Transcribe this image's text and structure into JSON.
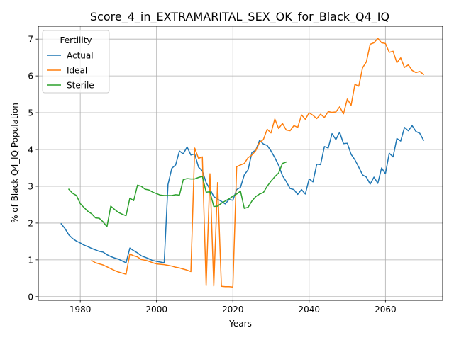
{
  "chart_data": {
    "type": "line",
    "title": "Score_4_in_EXTRAMARITAL_SEX_OK_for_Black_Q4_IQ",
    "xlabel": "Years",
    "ylabel": "% of Black Q4_IQ Population",
    "xlim": [
      1969,
      2075
    ],
    "ylim": [
      -0.1,
      7.35
    ],
    "xticks": [
      1980,
      2000,
      2020,
      2040,
      2060
    ],
    "yticks": [
      0,
      1,
      2,
      3,
      4,
      5,
      6,
      7
    ],
    "grid": true,
    "legend": {
      "title": "Fertility",
      "placement": "upper-left"
    },
    "series": [
      {
        "name": "Actual",
        "color": "#1f77b4",
        "points": [
          [
            1975,
            1.98
          ],
          [
            1976,
            1.85
          ],
          [
            1977,
            1.68
          ],
          [
            1978,
            1.58
          ],
          [
            1979,
            1.51
          ],
          [
            1980,
            1.46
          ],
          [
            1981,
            1.4
          ],
          [
            1982,
            1.36
          ],
          [
            1983,
            1.31
          ],
          [
            1984,
            1.27
          ],
          [
            1985,
            1.23
          ],
          [
            1986,
            1.21
          ],
          [
            1987,
            1.14
          ],
          [
            1988,
            1.09
          ],
          [
            1989,
            1.05
          ],
          [
            1990,
            1.02
          ],
          [
            1991,
            0.97
          ],
          [
            1992,
            0.92
          ],
          [
            1993,
            1.32
          ],
          [
            1994,
            1.25
          ],
          [
            1995,
            1.19
          ],
          [
            1996,
            1.11
          ],
          [
            1997,
            1.07
          ],
          [
            1998,
            1.03
          ],
          [
            1999,
            0.98
          ],
          [
            2000,
            0.96
          ],
          [
            2001,
            0.94
          ],
          [
            2002,
            0.92
          ],
          [
            2003,
            3.05
          ],
          [
            2004,
            3.49
          ],
          [
            2005,
            3.58
          ],
          [
            2006,
            3.96
          ],
          [
            2007,
            3.88
          ],
          [
            2008,
            4.07
          ],
          [
            2009,
            3.85
          ],
          [
            2010,
            3.88
          ],
          [
            2011,
            3.52
          ],
          [
            2012,
            3.42
          ],
          [
            2013,
            3.1
          ],
          [
            2014,
            2.92
          ],
          [
            2015,
            2.72
          ],
          [
            2016,
            2.65
          ],
          [
            2017,
            2.59
          ],
          [
            2018,
            2.52
          ],
          [
            2019,
            2.64
          ],
          [
            2020,
            2.62
          ],
          [
            2021,
            2.91
          ],
          [
            2022,
            2.97
          ],
          [
            2023,
            3.31
          ],
          [
            2024,
            3.45
          ],
          [
            2025,
            3.92
          ],
          [
            2026,
            3.98
          ],
          [
            2027,
            4.25
          ],
          [
            2028,
            4.15
          ],
          [
            2029,
            4.11
          ],
          [
            2030,
            3.96
          ],
          [
            2031,
            3.78
          ],
          [
            2032,
            3.57
          ],
          [
            2033,
            3.29
          ],
          [
            2034,
            3.13
          ],
          [
            2035,
            2.94
          ],
          [
            2036,
            2.91
          ],
          [
            2037,
            2.78
          ],
          [
            2038,
            2.91
          ],
          [
            2039,
            2.79
          ],
          [
            2040,
            3.2
          ],
          [
            2041,
            3.12
          ],
          [
            2042,
            3.6
          ],
          [
            2043,
            3.59
          ],
          [
            2044,
            4.08
          ],
          [
            2045,
            4.04
          ],
          [
            2046,
            4.43
          ],
          [
            2047,
            4.27
          ],
          [
            2048,
            4.47
          ],
          [
            2049,
            4.16
          ],
          [
            2050,
            4.17
          ],
          [
            2051,
            3.87
          ],
          [
            2052,
            3.72
          ],
          [
            2053,
            3.52
          ],
          [
            2054,
            3.31
          ],
          [
            2055,
            3.25
          ],
          [
            2056,
            3.06
          ],
          [
            2057,
            3.25
          ],
          [
            2058,
            3.08
          ],
          [
            2059,
            3.5
          ],
          [
            2060,
            3.34
          ],
          [
            2061,
            3.9
          ],
          [
            2062,
            3.8
          ],
          [
            2063,
            4.3
          ],
          [
            2064,
            4.23
          ],
          [
            2065,
            4.6
          ],
          [
            2066,
            4.51
          ],
          [
            2067,
            4.65
          ],
          [
            2068,
            4.49
          ],
          [
            2069,
            4.44
          ],
          [
            2070,
            4.25
          ]
        ]
      },
      {
        "name": "Ideal",
        "color": "#ff7f0e",
        "points": [
          [
            1983,
            0.98
          ],
          [
            1984,
            0.92
          ],
          [
            1985,
            0.89
          ],
          [
            1986,
            0.86
          ],
          [
            1987,
            0.81
          ],
          [
            1988,
            0.76
          ],
          [
            1989,
            0.71
          ],
          [
            1990,
            0.67
          ],
          [
            1991,
            0.64
          ],
          [
            1992,
            0.61
          ],
          [
            1993,
            1.16
          ],
          [
            1994,
            1.11
          ],
          [
            1995,
            1.08
          ],
          [
            1996,
            1.01
          ],
          [
            1997,
            0.99
          ],
          [
            1998,
            0.96
          ],
          [
            1999,
            0.92
          ],
          [
            2000,
            0.89
          ],
          [
            2001,
            0.88
          ],
          [
            2002,
            0.87
          ],
          [
            2003,
            0.85
          ],
          [
            2004,
            0.83
          ],
          [
            2005,
            0.8
          ],
          [
            2006,
            0.78
          ],
          [
            2007,
            0.75
          ],
          [
            2008,
            0.72
          ],
          [
            2009,
            0.68
          ],
          [
            2010,
            4.04
          ],
          [
            2011,
            3.76
          ],
          [
            2012,
            3.8
          ],
          [
            2013,
            0.3
          ],
          [
            2014,
            3.34
          ],
          [
            2015,
            0.29
          ],
          [
            2016,
            3.1
          ],
          [
            2017,
            0.28
          ],
          [
            2018,
            0.27
          ],
          [
            2019,
            0.27
          ],
          [
            2020,
            0.26
          ],
          [
            2021,
            3.53
          ],
          [
            2022,
            3.58
          ],
          [
            2023,
            3.62
          ],
          [
            2024,
            3.78
          ],
          [
            2025,
            3.85
          ],
          [
            2026,
            3.97
          ],
          [
            2027,
            4.19
          ],
          [
            2028,
            4.27
          ],
          [
            2029,
            4.55
          ],
          [
            2030,
            4.45
          ],
          [
            2031,
            4.83
          ],
          [
            2032,
            4.57
          ],
          [
            2033,
            4.71
          ],
          [
            2034,
            4.53
          ],
          [
            2035,
            4.51
          ],
          [
            2036,
            4.65
          ],
          [
            2037,
            4.6
          ],
          [
            2038,
            4.94
          ],
          [
            2039,
            4.82
          ],
          [
            2040,
            5.0
          ],
          [
            2041,
            4.93
          ],
          [
            2042,
            4.84
          ],
          [
            2043,
            4.96
          ],
          [
            2044,
            4.87
          ],
          [
            2045,
            5.03
          ],
          [
            2046,
            5.01
          ],
          [
            2047,
            5.02
          ],
          [
            2048,
            5.16
          ],
          [
            2049,
            4.97
          ],
          [
            2050,
            5.37
          ],
          [
            2051,
            5.2
          ],
          [
            2052,
            5.77
          ],
          [
            2053,
            5.72
          ],
          [
            2054,
            6.22
          ],
          [
            2055,
            6.38
          ],
          [
            2056,
            6.86
          ],
          [
            2057,
            6.9
          ],
          [
            2058,
            7.02
          ],
          [
            2059,
            6.9
          ],
          [
            2060,
            6.88
          ],
          [
            2061,
            6.64
          ],
          [
            2062,
            6.67
          ],
          [
            2063,
            6.36
          ],
          [
            2064,
            6.49
          ],
          [
            2065,
            6.23
          ],
          [
            2066,
            6.3
          ],
          [
            2067,
            6.15
          ],
          [
            2068,
            6.09
          ],
          [
            2069,
            6.12
          ],
          [
            2070,
            6.04
          ]
        ]
      },
      {
        "name": "Sterile",
        "color": "#2ca02c",
        "points": [
          [
            1977,
            2.92
          ],
          [
            1978,
            2.81
          ],
          [
            1979,
            2.75
          ],
          [
            1980,
            2.53
          ],
          [
            1981,
            2.42
          ],
          [
            1982,
            2.32
          ],
          [
            1983,
            2.25
          ],
          [
            1984,
            2.14
          ],
          [
            1985,
            2.13
          ],
          [
            1986,
            2.03
          ],
          [
            1987,
            1.9
          ],
          [
            1988,
            2.46
          ],
          [
            1989,
            2.37
          ],
          [
            1990,
            2.29
          ],
          [
            1991,
            2.24
          ],
          [
            1992,
            2.2
          ],
          [
            1993,
            2.68
          ],
          [
            1994,
            2.61
          ],
          [
            1995,
            3.03
          ],
          [
            1996,
            3.0
          ],
          [
            1997,
            2.92
          ],
          [
            1998,
            2.9
          ],
          [
            1999,
            2.84
          ],
          [
            2000,
            2.8
          ],
          [
            2001,
            2.76
          ],
          [
            2002,
            2.75
          ],
          [
            2003,
            2.75
          ],
          [
            2004,
            2.75
          ],
          [
            2005,
            2.77
          ],
          [
            2006,
            2.76
          ],
          [
            2007,
            3.18
          ],
          [
            2008,
            3.21
          ],
          [
            2009,
            3.2
          ],
          [
            2010,
            3.2
          ],
          [
            2011,
            3.24
          ],
          [
            2012,
            3.27
          ],
          [
            2013,
            2.84
          ],
          [
            2014,
            2.85
          ],
          [
            2015,
            2.45
          ],
          [
            2016,
            2.46
          ],
          [
            2017,
            2.54
          ],
          [
            2018,
            2.6
          ],
          [
            2019,
            2.66
          ],
          [
            2020,
            2.73
          ],
          [
            2021,
            2.79
          ],
          [
            2022,
            2.87
          ],
          [
            2023,
            2.4
          ],
          [
            2024,
            2.43
          ],
          [
            2025,
            2.6
          ],
          [
            2026,
            2.72
          ],
          [
            2027,
            2.79
          ],
          [
            2028,
            2.83
          ],
          [
            2029,
            3.0
          ],
          [
            2030,
            3.14
          ],
          [
            2031,
            3.26
          ],
          [
            2032,
            3.36
          ],
          [
            2033,
            3.62
          ],
          [
            2034,
            3.66
          ]
        ]
      }
    ]
  }
}
